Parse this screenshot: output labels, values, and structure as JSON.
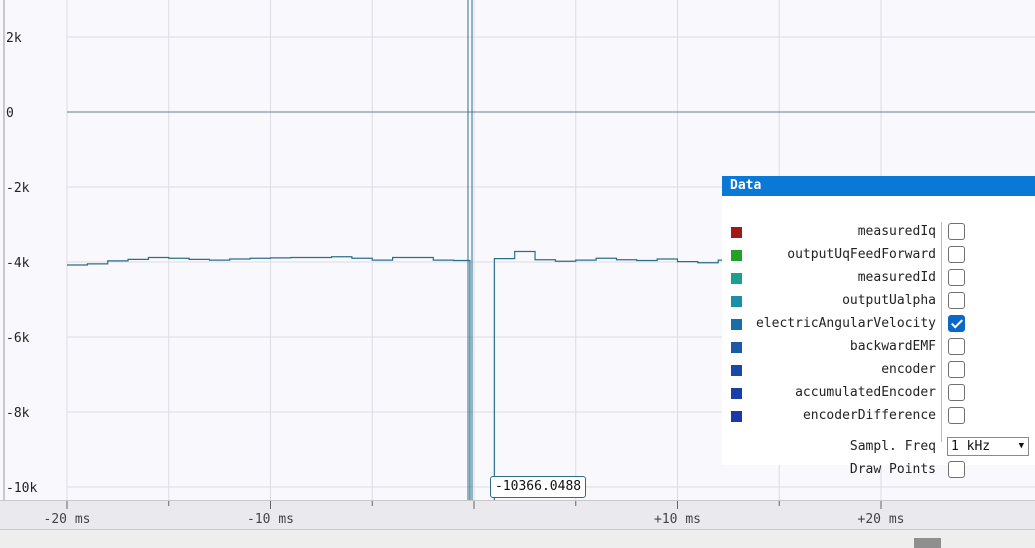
{
  "chart_data": {
    "type": "line",
    "title": "",
    "xlabel": "",
    "ylabel": "",
    "xlim": [
      -20,
      22
    ],
    "ylim": [
      -10500,
      3000
    ],
    "x_unit": "ms",
    "y_ticks": [
      2000,
      0,
      -2000,
      -4000,
      -6000,
      -8000,
      -10000
    ],
    "y_tick_labels": [
      "2k",
      "0",
      "-2k",
      "-4k",
      "-6k",
      "-8k",
      "-10k"
    ],
    "x_ticks": [
      -20,
      -10,
      10,
      20
    ],
    "x_tick_labels": [
      "-20 ms",
      "-10 ms",
      "+10 ms",
      "+20 ms"
    ],
    "grid": true,
    "series": [
      {
        "name": "electricAngularVelocity",
        "color": "#2a6f8a",
        "step": true,
        "x": [
          -20,
          -19,
          -18,
          -17,
          -16,
          -15,
          -14,
          -13,
          -12,
          -11,
          -10,
          -9,
          -8,
          -7,
          -6,
          -5,
          -4,
          -3,
          -2,
          -1,
          -0.2,
          0.2,
          1,
          2,
          3,
          4,
          5,
          6,
          7,
          8,
          9,
          10,
          11,
          12,
          13,
          14,
          15,
          16,
          17,
          18,
          19,
          20,
          21,
          22
        ],
        "y": [
          -4080,
          -4050,
          -3970,
          -3930,
          -3880,
          -3900,
          -3930,
          -3950,
          -3920,
          -3900,
          -3890,
          -3880,
          -3880,
          -3860,
          -3900,
          -3950,
          -3880,
          -3880,
          -3950,
          -3960,
          -10366,
          -10366,
          -3910,
          -3720,
          -3940,
          -3980,
          -3950,
          -3900,
          -3940,
          -3960,
          -3920,
          -3990,
          -4020,
          -3950,
          -3930,
          -3970,
          -3940,
          -3960,
          -3990,
          -3970,
          -3950,
          -3980,
          -3960,
          -3970
        ]
      }
    ],
    "cursor": {
      "x": 0,
      "value_label": "-10366.0488"
    }
  },
  "panel": {
    "title": "Data",
    "items": [
      {
        "label": "measuredIq",
        "color": "#a01818",
        "checked": false
      },
      {
        "label": "outputUqFeedForward",
        "color": "#22a028",
        "checked": false
      },
      {
        "label": "measuredId",
        "color": "#1aa090",
        "checked": false
      },
      {
        "label": "outputUalpha",
        "color": "#1a90a8",
        "checked": false
      },
      {
        "label": "electricAngularVelocity",
        "color": "#1a6ea8",
        "checked": true
      },
      {
        "label": "backwardEMF",
        "color": "#1a58a8",
        "checked": false
      },
      {
        "label": "encoder",
        "color": "#1a48a8",
        "checked": false
      },
      {
        "label": "accumulatedEncoder",
        "color": "#1a3ea8",
        "checked": false
      },
      {
        "label": "encoderDifference",
        "color": "#1a38a8",
        "checked": false
      }
    ],
    "freq_label": "Sampl. Freq",
    "freq_value": "1 kHz",
    "freq_arrow": "▼",
    "draw_points_label": "Draw Points",
    "draw_points_checked": false
  }
}
